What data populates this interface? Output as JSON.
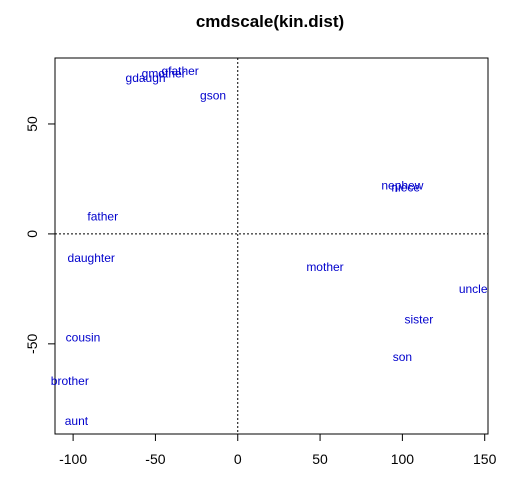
{
  "chart_data": {
    "type": "scatter",
    "title": "cmdscale(kin.dist)",
    "xlabel": "",
    "ylabel": "",
    "xlim": [
      -111,
      152
    ],
    "ylim": [
      -91,
      80
    ],
    "xticks": [
      -100,
      -50,
      0,
      50,
      100,
      150
    ],
    "yticks": [
      -50,
      0,
      50
    ],
    "reference_lines": {
      "x": 0,
      "y": 0,
      "style": "dotted"
    },
    "grid": false,
    "legend": "none",
    "label_color": "#0000cc",
    "points": [
      {
        "label": "gfather",
        "x": -35,
        "y": 74
      },
      {
        "label": "gmother",
        "x": -45,
        "y": 73
      },
      {
        "label": "gdaugh",
        "x": -56,
        "y": 71
      },
      {
        "label": "gson",
        "x": -15,
        "y": 63
      },
      {
        "label": "nephew",
        "x": 100,
        "y": 22
      },
      {
        "label": "niece",
        "x": 102,
        "y": 21
      },
      {
        "label": "father",
        "x": -82,
        "y": 8
      },
      {
        "label": "daughter",
        "x": -89,
        "y": -11
      },
      {
        "label": "mother",
        "x": 53,
        "y": -15
      },
      {
        "label": "uncle",
        "x": 143,
        "y": -25
      },
      {
        "label": "sister",
        "x": 110,
        "y": -39
      },
      {
        "label": "cousin",
        "x": -94,
        "y": -47
      },
      {
        "label": "son",
        "x": 100,
        "y": -56
      },
      {
        "label": "brother",
        "x": -102,
        "y": -67
      },
      {
        "label": "aunt",
        "x": -98,
        "y": -85
      }
    ]
  }
}
